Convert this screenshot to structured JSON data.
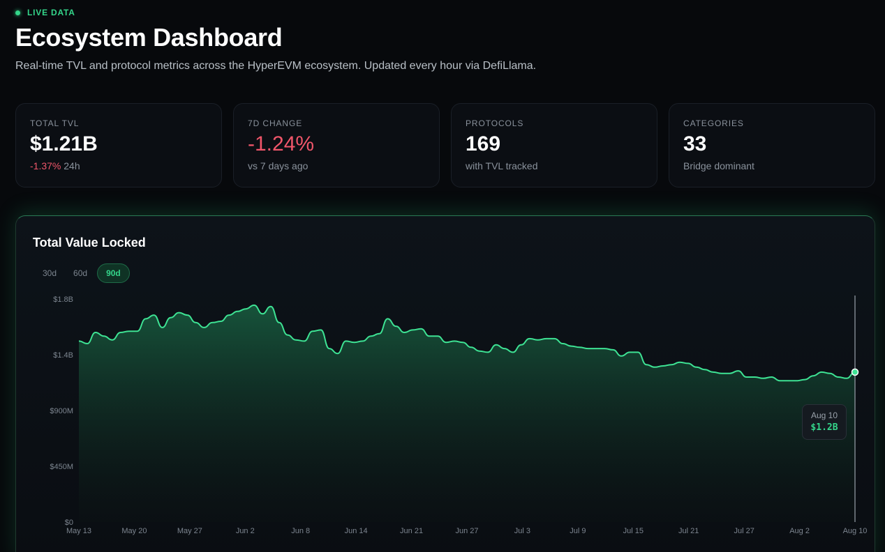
{
  "header": {
    "live_label": "LIVE DATA",
    "title": "Ecosystem Dashboard",
    "subtitle": "Real-time TVL and protocol metrics across the HyperEVM ecosystem. Updated every hour via DefiLlama."
  },
  "stats": [
    {
      "label": "TOTAL TVL",
      "value": "$1.21B",
      "sub_change": "-1.37%",
      "sub_text": "24h"
    },
    {
      "label": "7D CHANGE",
      "value": "-1.24%",
      "sub_text": "vs 7 days ago"
    },
    {
      "label": "PROTOCOLS",
      "value": "169",
      "sub_text": "with TVL tracked"
    },
    {
      "label": "CATEGORIES",
      "value": "33",
      "sub_text": "Bridge dominant"
    }
  ],
  "chart": {
    "title": "Total Value Locked",
    "ranges": [
      "30d",
      "60d",
      "90d"
    ],
    "active_range": "90d",
    "tooltip": {
      "date": "Aug 10",
      "value": "$1.2B"
    }
  },
  "colors": {
    "accent": "#34d58a",
    "negative": "#f0566a",
    "background": "#07090c"
  },
  "chart_data": {
    "type": "area",
    "title": "Total Value Locked",
    "xlabel": "",
    "ylabel": "",
    "ylim": [
      0,
      1800000000
    ],
    "y_ticks": [
      {
        "value": 0,
        "label": "$0"
      },
      {
        "value": 450000000,
        "label": "$450M"
      },
      {
        "value": 900000000,
        "label": "$900M"
      },
      {
        "value": 1350000000,
        "label": "$1.4B"
      },
      {
        "value": 1800000000,
        "label": "$1.8B"
      }
    ],
    "x_ticks": [
      "May 13",
      "May 20",
      "May 27",
      "Jun 2",
      "Jun 8",
      "Jun 14",
      "Jun 21",
      "Jun 27",
      "Jul 3",
      "Jul 9",
      "Jul 15",
      "Jul 21",
      "Jul 27",
      "Aug 2",
      "Aug 10"
    ],
    "grid": false,
    "series": [
      {
        "values": [
          1.46,
          1.44,
          1.53,
          1.5,
          1.47,
          1.53,
          1.54,
          1.54,
          1.64,
          1.67,
          1.57,
          1.65,
          1.69,
          1.67,
          1.61,
          1.57,
          1.61,
          1.62,
          1.67,
          1.7,
          1.72,
          1.75,
          1.68,
          1.74,
          1.61,
          1.51,
          1.47,
          1.46,
          1.54,
          1.55,
          1.4,
          1.36,
          1.46,
          1.45,
          1.46,
          1.5,
          1.52,
          1.64,
          1.58,
          1.53,
          1.55,
          1.56,
          1.5,
          1.5,
          1.45,
          1.46,
          1.45,
          1.41,
          1.38,
          1.37,
          1.43,
          1.4,
          1.37,
          1.43,
          1.48,
          1.47,
          1.48,
          1.48,
          1.44,
          1.42,
          1.41,
          1.4,
          1.4,
          1.4,
          1.39,
          1.34,
          1.37,
          1.37,
          1.27,
          1.25,
          1.26,
          1.27,
          1.29,
          1.28,
          1.25,
          1.23,
          1.21,
          1.2,
          1.2,
          1.22,
          1.17,
          1.17,
          1.16,
          1.17,
          1.14,
          1.14,
          1.14,
          1.15,
          1.18,
          1.21,
          1.2,
          1.17,
          1.16,
          1.21
        ]
      }
    ],
    "highlight": {
      "x": "Aug 10",
      "value": 1200000000
    }
  }
}
